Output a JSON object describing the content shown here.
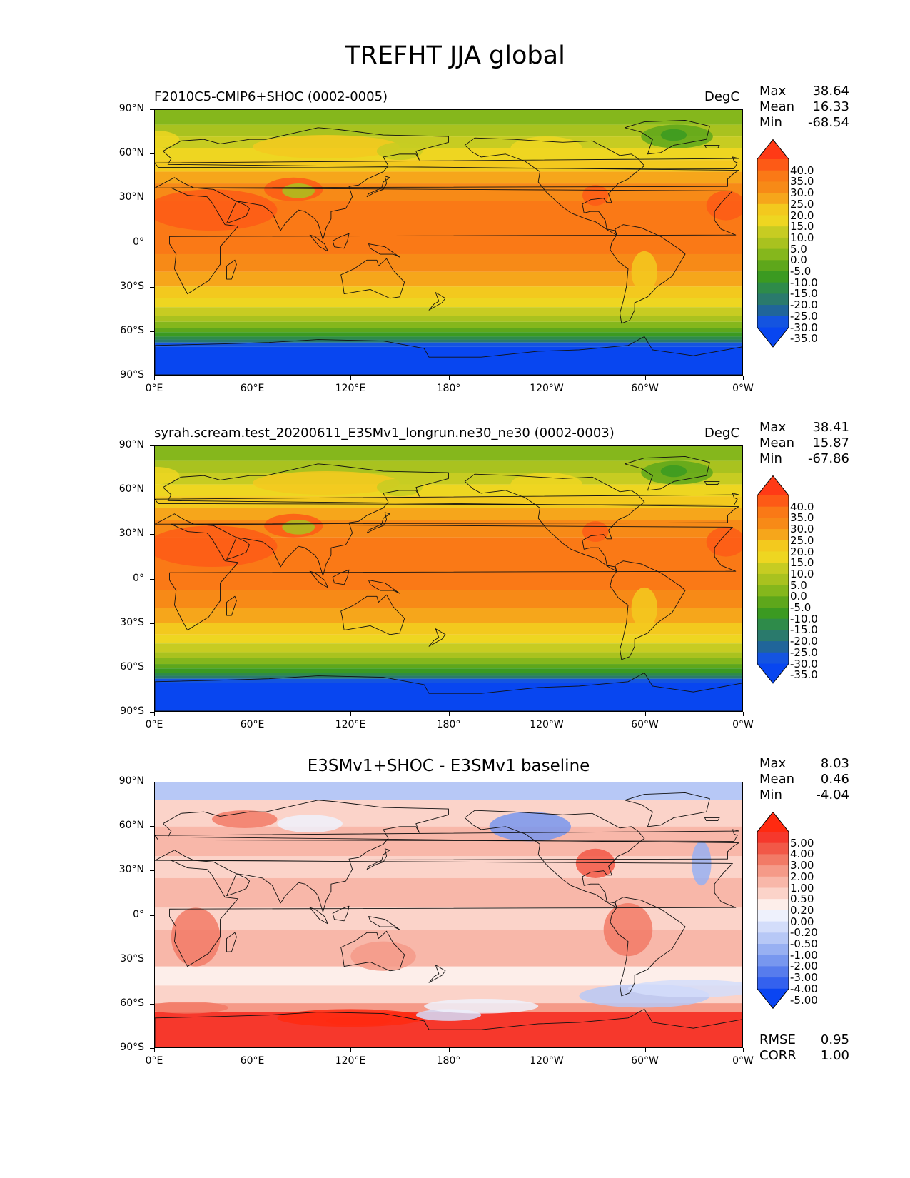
{
  "figure_title": "TREFHT JJA global",
  "lat_ticks": [
    "90°N",
    "60°N",
    "30°N",
    "0°",
    "30°S",
    "60°S",
    "90°S"
  ],
  "lon_ticks": [
    "0°E",
    "60°E",
    "120°E",
    "180°",
    "120°W",
    "60°W",
    "0°W"
  ],
  "panels": [
    {
      "title": "F2010C5-CMIP6+SHOC (0002-0005)",
      "units": "DegC",
      "stats": {
        "max_label": "Max",
        "max": "38.64",
        "mean_label": "Mean",
        "mean": "16.33",
        "min_label": "Min",
        "min": "-68.54"
      },
      "colorbar": {
        "labels": [
          "40.0",
          "35.0",
          "30.0",
          "25.0",
          "20.0",
          "15.0",
          "10.0",
          "5.0",
          "0.0",
          "-5.0",
          "-10.0",
          "-15.0",
          "-20.0",
          "-25.0",
          "-30.0",
          "-35.0"
        ],
        "colors": [
          "#ff3a16",
          "#fd5a16",
          "#fa7916",
          "#f78a17",
          "#f6a61b",
          "#f3c91e",
          "#eed621",
          "#c7cc22",
          "#a9c21f",
          "#85b71c",
          "#5ea71b",
          "#3b9a21",
          "#2e8b4a",
          "#2a7a6c",
          "#20659a",
          "#1454e0",
          "#0846f0"
        ]
      }
    },
    {
      "title": "syrah.scream.test_20200611_E3SMv1_longrun.ne30_ne30 (0002-0003)",
      "units": "DegC",
      "stats": {
        "max_label": "Max",
        "max": "38.41",
        "mean_label": "Mean",
        "mean": "15.87",
        "min_label": "Min",
        "min": "-67.86"
      },
      "colorbar": {
        "labels": [
          "40.0",
          "35.0",
          "30.0",
          "25.0",
          "20.0",
          "15.0",
          "10.0",
          "5.0",
          "0.0",
          "-5.0",
          "-10.0",
          "-15.0",
          "-20.0",
          "-25.0",
          "-30.0",
          "-35.0"
        ],
        "colors": [
          "#ff3a16",
          "#fd5a16",
          "#fa7916",
          "#f78a17",
          "#f6a61b",
          "#f3c91e",
          "#eed621",
          "#c7cc22",
          "#a9c21f",
          "#85b71c",
          "#5ea71b",
          "#3b9a21",
          "#2e8b4a",
          "#2a7a6c",
          "#20659a",
          "#1454e0",
          "#0846f0"
        ]
      }
    },
    {
      "title": "E3SMv1+SHOC - E3SMv1 baseline",
      "units": "",
      "stats": {
        "max_label": "Max",
        "max": "8.03",
        "mean_label": "Mean",
        "mean": "0.46",
        "min_label": "Min",
        "min": "-4.04"
      },
      "extra_stats": {
        "rmse_label": "RMSE",
        "rmse": "0.95",
        "corr_label": "CORR",
        "corr": "1.00"
      },
      "colorbar": {
        "labels": [
          "5.00",
          "4.00",
          "3.00",
          "2.00",
          "1.00",
          "0.50",
          "0.20",
          "0.00",
          "-0.20",
          "-0.50",
          "-1.00",
          "-2.00",
          "-3.00",
          "-4.00",
          "-5.00"
        ],
        "colors": [
          "#ff2a10",
          "#f6382c",
          "#f25847",
          "#f27a66",
          "#f59a88",
          "#f8b7a9",
          "#fbd3c9",
          "#fdeeea",
          "#eef1fc",
          "#d3ddfa",
          "#b7c8f6",
          "#98b0f2",
          "#7897ef",
          "#577ced",
          "#3461ee",
          "#0a45f2"
        ]
      }
    }
  ],
  "chart_data": [
    {
      "type": "heatmap",
      "title": "F2010C5-CMIP6+SHOC (0002-0005)",
      "variable": "TREFHT",
      "season": "JJA",
      "units": "DegC",
      "xlim": [
        0,
        360
      ],
      "ylim": [
        -90,
        90
      ],
      "max": 38.64,
      "mean": 16.33,
      "min": -68.54,
      "levels": [
        -35,
        -30,
        -25,
        -20,
        -15,
        -10,
        -5,
        0,
        5,
        10,
        15,
        20,
        25,
        30,
        35,
        40
      ]
    },
    {
      "type": "heatmap",
      "title": "syrah.scream.test_20200611_E3SMv1_longrun.ne30_ne30 (0002-0003)",
      "variable": "TREFHT",
      "season": "JJA",
      "units": "DegC",
      "xlim": [
        0,
        360
      ],
      "ylim": [
        -90,
        90
      ],
      "max": 38.41,
      "mean": 15.87,
      "min": -67.86,
      "levels": [
        -35,
        -30,
        -25,
        -20,
        -15,
        -10,
        -5,
        0,
        5,
        10,
        15,
        20,
        25,
        30,
        35,
        40
      ]
    },
    {
      "type": "heatmap",
      "title": "E3SMv1+SHOC - E3SMv1 baseline",
      "variable": "TREFHT difference",
      "season": "JJA",
      "xlim": [
        0,
        360
      ],
      "ylim": [
        -90,
        90
      ],
      "max": 8.03,
      "mean": 0.46,
      "min": -4.04,
      "rmse": 0.95,
      "corr": 1.0,
      "levels": [
        -5,
        -4,
        -3,
        -2,
        -1,
        -0.5,
        -0.2,
        0,
        0.2,
        0.5,
        1,
        2,
        3,
        4,
        5
      ]
    }
  ]
}
